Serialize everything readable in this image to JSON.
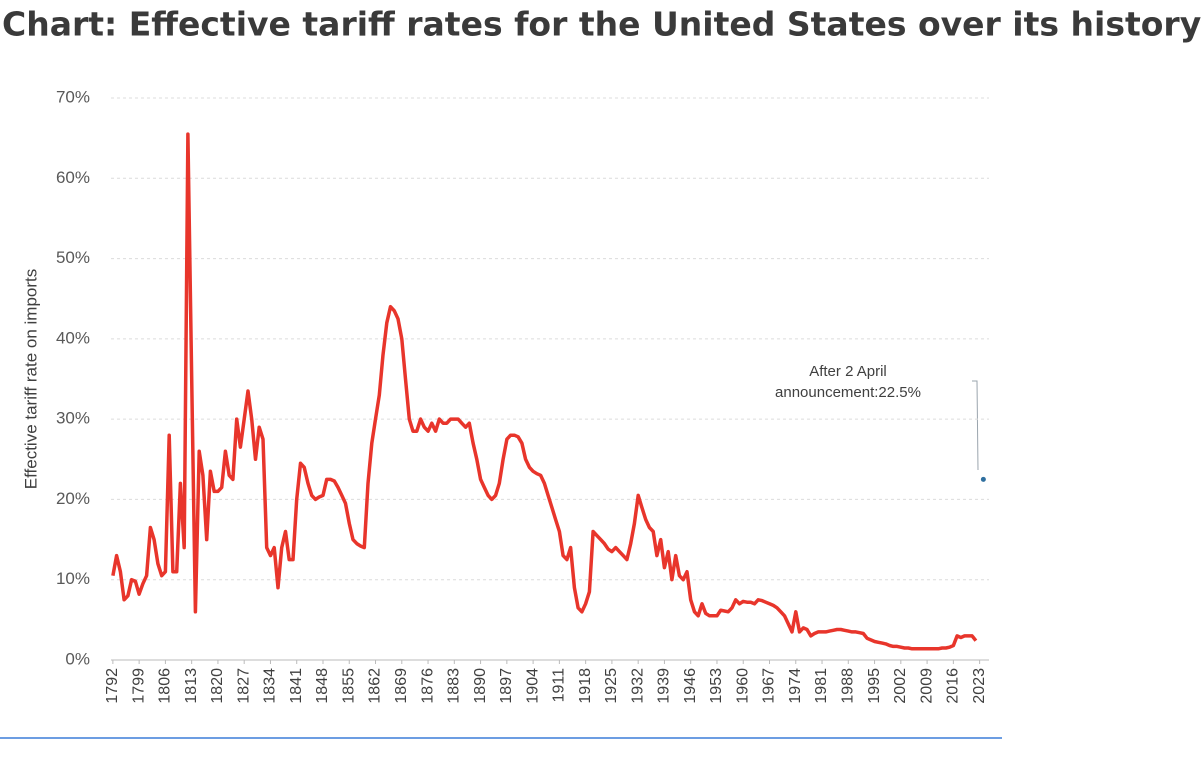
{
  "chart_data": {
    "type": "line",
    "title": "Chart: Effective tariff rates for the United States over its history",
    "y_label": "Effective tariff rate on imports",
    "annotation": [
      "After 2 April",
      "announcement:22.5%"
    ],
    "xlim": [
      1791.5,
      2025.5
    ],
    "xticks": [
      1792,
      1799,
      1806,
      1813,
      1820,
      1827,
      1834,
      1841,
      1848,
      1855,
      1862,
      1869,
      1876,
      1883,
      1890,
      1897,
      1904,
      1911,
      1918,
      1925,
      1932,
      1939,
      1946,
      1953,
      1960,
      1967,
      1974,
      1981,
      1988,
      1995,
      2002,
      2009,
      2016,
      2023
    ],
    "ylim": [
      0,
      70
    ],
    "yticks": [
      {
        "value": 0,
        "label": "0%"
      },
      {
        "value": 10,
        "label": "10%"
      },
      {
        "value": 20,
        "label": "20%"
      },
      {
        "value": 30,
        "label": "30%"
      },
      {
        "value": 40,
        "label": "40%"
      },
      {
        "value": 50,
        "label": "50%"
      },
      {
        "value": 60,
        "label": "60%"
      },
      {
        "value": 70,
        "label": "70%"
      }
    ],
    "grid": true,
    "series": [
      {
        "name": "Effective tariff rate",
        "color": "#e8352b",
        "x": [
          1792,
          1793,
          1794,
          1795,
          1796,
          1797,
          1798,
          1799,
          1800,
          1801,
          1802,
          1803,
          1804,
          1805,
          1806,
          1807,
          1808,
          1809,
          1810,
          1811,
          1812,
          1813,
          1814,
          1815,
          1816,
          1817,
          1818,
          1819,
          1820,
          1821,
          1822,
          1823,
          1824,
          1825,
          1826,
          1827,
          1828,
          1829,
          1830,
          1831,
          1832,
          1833,
          1834,
          1835,
          1836,
          1837,
          1838,
          1839,
          1840,
          1841,
          1842,
          1843,
          1844,
          1845,
          1846,
          1847,
          1848,
          1849,
          1850,
          1851,
          1852,
          1853,
          1854,
          1855,
          1856,
          1857,
          1858,
          1859,
          1860,
          1861,
          1862,
          1863,
          1864,
          1865,
          1866,
          1867,
          1868,
          1869,
          1870,
          1871,
          1872,
          1873,
          1874,
          1875,
          1876,
          1877,
          1878,
          1879,
          1880,
          1881,
          1882,
          1883,
          1884,
          1885,
          1886,
          1887,
          1888,
          1889,
          1890,
          1891,
          1892,
          1893,
          1894,
          1895,
          1896,
          1897,
          1898,
          1899,
          1900,
          1901,
          1902,
          1903,
          1904,
          1905,
          1906,
          1907,
          1908,
          1909,
          1910,
          1911,
          1912,
          1913,
          1914,
          1915,
          1916,
          1917,
          1918,
          1919,
          1920,
          1921,
          1922,
          1923,
          1924,
          1925,
          1926,
          1927,
          1928,
          1929,
          1930,
          1931,
          1932,
          1933,
          1934,
          1935,
          1936,
          1937,
          1938,
          1939,
          1940,
          1941,
          1942,
          1943,
          1944,
          1945,
          1946,
          1947,
          1948,
          1949,
          1950,
          1951,
          1952,
          1953,
          1954,
          1955,
          1956,
          1957,
          1958,
          1959,
          1960,
          1961,
          1962,
          1963,
          1964,
          1965,
          1966,
          1967,
          1968,
          1969,
          1970,
          1971,
          1972,
          1973,
          1974,
          1975,
          1976,
          1977,
          1978,
          1979,
          1980,
          1981,
          1982,
          1983,
          1984,
          1985,
          1986,
          1987,
          1988,
          1989,
          1990,
          1991,
          1992,
          1993,
          1994,
          1995,
          1996,
          1997,
          1998,
          1999,
          2000,
          2001,
          2002,
          2003,
          2004,
          2005,
          2006,
          2007,
          2008,
          2009,
          2010,
          2011,
          2012,
          2013,
          2014,
          2015,
          2016,
          2017,
          2018,
          2019,
          2020,
          2021,
          2022
        ],
        "values": [
          10.5,
          13,
          11,
          7.5,
          8,
          10,
          9.8,
          8.2,
          9.5,
          10.5,
          16.5,
          15,
          12,
          10.5,
          11,
          28,
          11,
          11,
          22,
          14,
          65.5,
          35,
          6,
          26,
          23,
          15,
          23.5,
          21,
          21,
          21.5,
          26,
          23,
          22.5,
          30,
          26.5,
          30,
          33.5,
          30,
          25,
          29,
          27.5,
          14,
          13,
          14,
          9,
          14,
          16,
          12.5,
          12.5,
          20,
          24.5,
          24,
          22,
          20.5,
          20,
          20.3,
          20.5,
          22.5,
          22.5,
          22.3,
          21.5,
          20.5,
          19.5,
          17,
          15,
          14.5,
          14.2,
          14,
          22,
          27,
          30,
          33,
          38,
          42,
          44,
          43.5,
          42.5,
          40,
          35,
          30,
          28.5,
          28.5,
          30,
          29,
          28.5,
          29.5,
          28.5,
          30,
          29.5,
          29.5,
          30,
          30,
          30,
          29.5,
          29,
          29.5,
          27,
          25,
          22.5,
          21.5,
          20.5,
          20,
          20.5,
          22,
          25,
          27.5,
          28,
          28,
          27.8,
          27,
          25,
          24,
          23.5,
          23.2,
          23,
          22,
          20.5,
          19,
          17.5,
          16,
          13,
          12.5,
          14,
          9,
          6.5,
          6,
          7,
          8.5,
          16,
          15.5,
          15,
          14.5,
          13.8,
          13.5,
          14,
          13.5,
          13,
          12.5,
          14.5,
          17,
          20.5,
          19,
          17.5,
          16.5,
          16,
          13,
          15,
          11.5,
          13.5,
          10,
          13,
          10.5,
          10,
          11,
          7.5,
          6,
          5.5,
          7,
          5.8,
          5.5,
          5.5,
          5.5,
          6.2,
          6.1,
          6,
          6.5,
          7.5,
          7,
          7.3,
          7.2,
          7.2,
          7,
          7.5,
          7.4,
          7.2,
          7,
          6.8,
          6.5,
          6,
          5.5,
          4.5,
          3.5,
          6,
          3.5,
          4,
          3.8,
          3,
          3.3,
          3.5,
          3.5,
          3.5,
          3.6,
          3.7,
          3.8,
          3.8,
          3.7,
          3.6,
          3.5,
          3.5,
          3.4,
          3.3,
          2.7,
          2.5,
          2.3,
          2.2,
          2.1,
          2,
          1.8,
          1.7,
          1.7,
          1.6,
          1.5,
          1.5,
          1.4,
          1.4,
          1.4,
          1.4,
          1.4,
          1.4,
          1.4,
          1.4,
          1.5,
          1.5,
          1.6,
          1.8,
          3,
          2.8,
          3,
          3,
          3,
          2.4
        ]
      },
      {
        "name": "After 2 April announcement",
        "color": "#2f6f9f",
        "x": [
          2024
        ],
        "values": [
          22.5
        ]
      }
    ]
  }
}
